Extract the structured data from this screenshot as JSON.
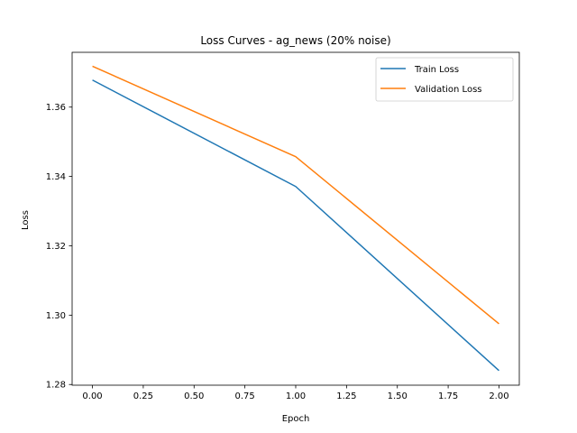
{
  "chart_data": {
    "type": "line",
    "title": "Loss Curves - ag_news (20% noise)",
    "xlabel": "Epoch",
    "ylabel": "Loss",
    "xlim": [
      -0.1,
      2.1
    ],
    "ylim": [
      1.2798,
      1.3758
    ],
    "xticks": [
      0.0,
      0.25,
      0.5,
      0.75,
      1.0,
      1.25,
      1.5,
      1.75,
      2.0
    ],
    "xtick_labels": [
      "0.00",
      "0.25",
      "0.50",
      "0.75",
      "1.00",
      "1.25",
      "1.50",
      "1.75",
      "2.00"
    ],
    "yticks": [
      1.28,
      1.3,
      1.32,
      1.34,
      1.36
    ],
    "ytick_labels": [
      "1.28",
      "1.30",
      "1.32",
      "1.34",
      "1.36"
    ],
    "grid": false,
    "legend_position": "top-right",
    "series": [
      {
        "name": "Train Loss",
        "color": "#1f77b4",
        "x": [
          0,
          1,
          2
        ],
        "y": [
          1.3678,
          1.3371,
          1.284
        ]
      },
      {
        "name": "Validation Loss",
        "color": "#ff7f0e",
        "x": [
          0,
          1,
          2
        ],
        "y": [
          1.3718,
          1.3457,
          1.2975
        ]
      }
    ]
  }
}
